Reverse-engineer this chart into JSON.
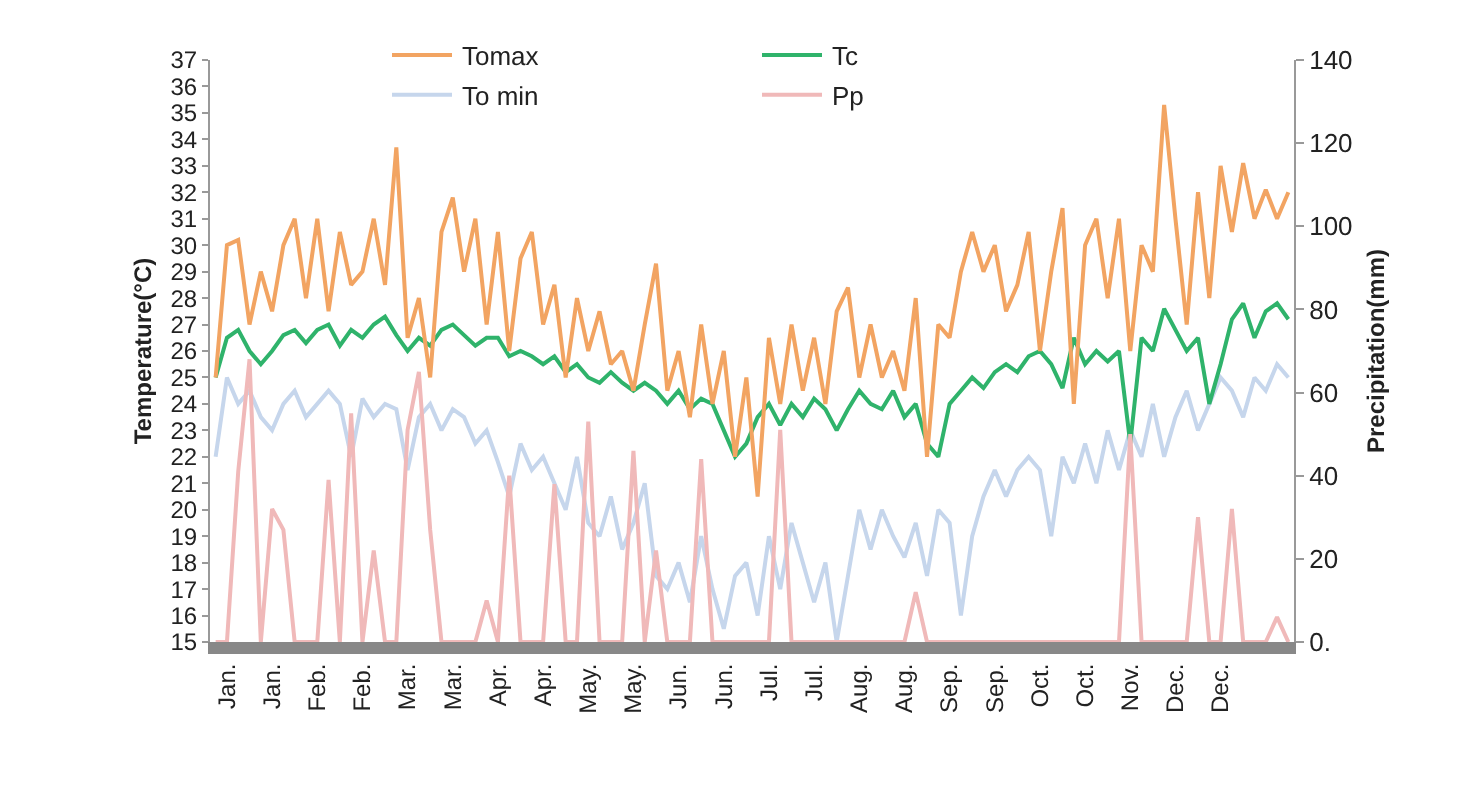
{
  "chart_data": {
    "type": "line",
    "ylabel": "Temperature(°C)",
    "y2label": "Precipitation(mm)",
    "categories": [
      null,
      "Jan.",
      null,
      null,
      null,
      "Jan.",
      null,
      null,
      null,
      "Feb.",
      null,
      null,
      null,
      "Feb.",
      null,
      null,
      null,
      "Mar.",
      null,
      null,
      null,
      "Mar.",
      null,
      null,
      null,
      "Apr.",
      null,
      null,
      null,
      "Apr.",
      null,
      null,
      null,
      "May.",
      null,
      null,
      null,
      "May.",
      null,
      null,
      null,
      "Jun.",
      null,
      null,
      null,
      "Jun.",
      null,
      null,
      null,
      "Jul.",
      null,
      null,
      null,
      "Jul.",
      null,
      null,
      null,
      "Aug.",
      null,
      null,
      null,
      "Aug.",
      null,
      null,
      null,
      "Sep.",
      null,
      null,
      null,
      "Sep.",
      null,
      null,
      null,
      "Oct.",
      null,
      null,
      null,
      "Oct.",
      null,
      null,
      null,
      "Nov.",
      null,
      null,
      null,
      "Dec.",
      null,
      null,
      null,
      "Dec.",
      null,
      null,
      null,
      null,
      null,
      null
    ],
    "ylim": [
      15,
      37
    ],
    "yticks": [
      15,
      16,
      17,
      18,
      19,
      20,
      21,
      22,
      23,
      24,
      25,
      26,
      27,
      28,
      29,
      30,
      31,
      32,
      33,
      34,
      35,
      36,
      37
    ],
    "y2lim": [
      0,
      140
    ],
    "y2ticks": [
      {
        "value": 0,
        "label": "0."
      },
      20,
      40,
      60,
      80,
      100,
      120,
      140
    ],
    "legend": "top",
    "marker": "none",
    "line_style": "solid",
    "series": [
      {
        "name": "Tomax",
        "color": "#f2a462",
        "values": [
          25,
          30,
          30.2,
          27,
          29,
          27.5,
          30,
          31,
          28,
          31,
          27.5,
          30.5,
          28.5,
          29,
          31,
          28.5,
          33.7,
          26.5,
          28,
          25,
          30.5,
          31.8,
          29,
          31,
          27,
          30.5,
          26,
          29.5,
          30.5,
          27,
          28.5,
          25,
          28,
          26,
          27.5,
          25.5,
          26,
          24.5,
          27,
          29.3,
          24.5,
          26,
          23.5,
          27,
          24,
          26,
          22,
          25,
          20.5,
          26.5,
          24,
          27,
          24.5,
          26.5,
          24,
          27.5,
          28.4,
          25,
          27,
          25,
          26,
          24.5,
          28,
          22,
          27,
          26.5,
          29,
          30.5,
          29,
          30,
          27.5,
          28.5,
          30.5,
          26,
          29,
          31.4,
          24,
          30,
          31,
          28,
          31,
          26,
          30,
          29,
          35.3,
          31,
          27,
          32,
          28,
          33,
          30.5,
          33.1,
          31,
          32.1,
          31,
          32
        ]
      },
      {
        "name": "Tc",
        "color": "#2fb36b",
        "values": [
          25,
          26.5,
          26.8,
          26,
          25.5,
          26,
          26.6,
          26.8,
          26.3,
          26.8,
          27,
          26.2,
          26.8,
          26.5,
          27,
          27.3,
          26.6,
          26,
          26.5,
          26.2,
          26.8,
          27,
          26.6,
          26.2,
          26.5,
          26.5,
          25.8,
          26,
          25.8,
          25.5,
          25.8,
          25.2,
          25.5,
          25,
          24.8,
          25.2,
          24.8,
          24.5,
          24.8,
          24.5,
          24,
          24.5,
          23.8,
          24.2,
          24,
          23,
          22,
          22.5,
          23.5,
          24,
          23.2,
          24,
          23.5,
          24.2,
          23.8,
          23,
          23.8,
          24.5,
          24,
          23.8,
          24.5,
          23.5,
          24,
          22.5,
          22,
          24,
          24.5,
          25,
          24.6,
          25.2,
          25.5,
          25.2,
          25.8,
          26,
          25.5,
          24.6,
          26.5,
          25.5,
          26,
          25.6,
          26,
          22.5,
          26.5,
          26,
          27.6,
          26.8,
          26,
          26.5,
          24,
          25.5,
          27.2,
          27.8,
          26.5,
          27.5,
          27.8,
          27.2
        ]
      },
      {
        "name": "To min",
        "color": "#c6d6ec",
        "values": [
          22,
          25,
          24,
          24.5,
          23.5,
          23,
          24,
          24.5,
          23.5,
          24,
          24.5,
          24,
          22,
          24.2,
          23.5,
          24,
          23.8,
          21.5,
          23.5,
          24,
          23,
          23.8,
          23.5,
          22.5,
          23,
          21.8,
          20.5,
          22.5,
          21.5,
          22,
          21,
          20,
          22,
          19.5,
          19,
          20.5,
          18.5,
          19.5,
          21,
          17.5,
          17,
          18,
          16.5,
          19,
          17,
          15.5,
          17.5,
          18,
          16,
          19,
          17,
          19.5,
          18,
          16.5,
          18,
          15,
          17.5,
          20,
          18.5,
          20,
          19,
          18.2,
          19.5,
          17.5,
          20,
          19.5,
          16,
          19,
          20.5,
          21.5,
          20.5,
          21.5,
          22,
          21.5,
          19,
          22,
          21,
          22.5,
          21,
          23,
          21.5,
          23,
          22,
          24,
          22,
          23.5,
          24.5,
          23,
          24,
          25,
          24.5,
          23.5,
          25,
          24.5,
          25.5,
          25
        ]
      },
      {
        "name": "Pp",
        "color": "#f0b9b9",
        "axis": "y2",
        "values": [
          0,
          0,
          41,
          68,
          0,
          32,
          27,
          0,
          0,
          0,
          39,
          0,
          55,
          0,
          22,
          0,
          0,
          51,
          65,
          27,
          0,
          0,
          0,
          0,
          10,
          0,
          40,
          0,
          0,
          0,
          38,
          0,
          0,
          53,
          0,
          0,
          0,
          46,
          0,
          22,
          0,
          0,
          0,
          44,
          0,
          0,
          0,
          0,
          0,
          0,
          51,
          0,
          0,
          0,
          0,
          0,
          0,
          0,
          0,
          0,
          0,
          0,
          12,
          0,
          0,
          0,
          0,
          0,
          0,
          0,
          0,
          0,
          0,
          0,
          0,
          0,
          0,
          0,
          0,
          0,
          0,
          50,
          0,
          0,
          0,
          0,
          0,
          30,
          0,
          0,
          32,
          0,
          0,
          0,
          6,
          0
        ]
      }
    ]
  }
}
